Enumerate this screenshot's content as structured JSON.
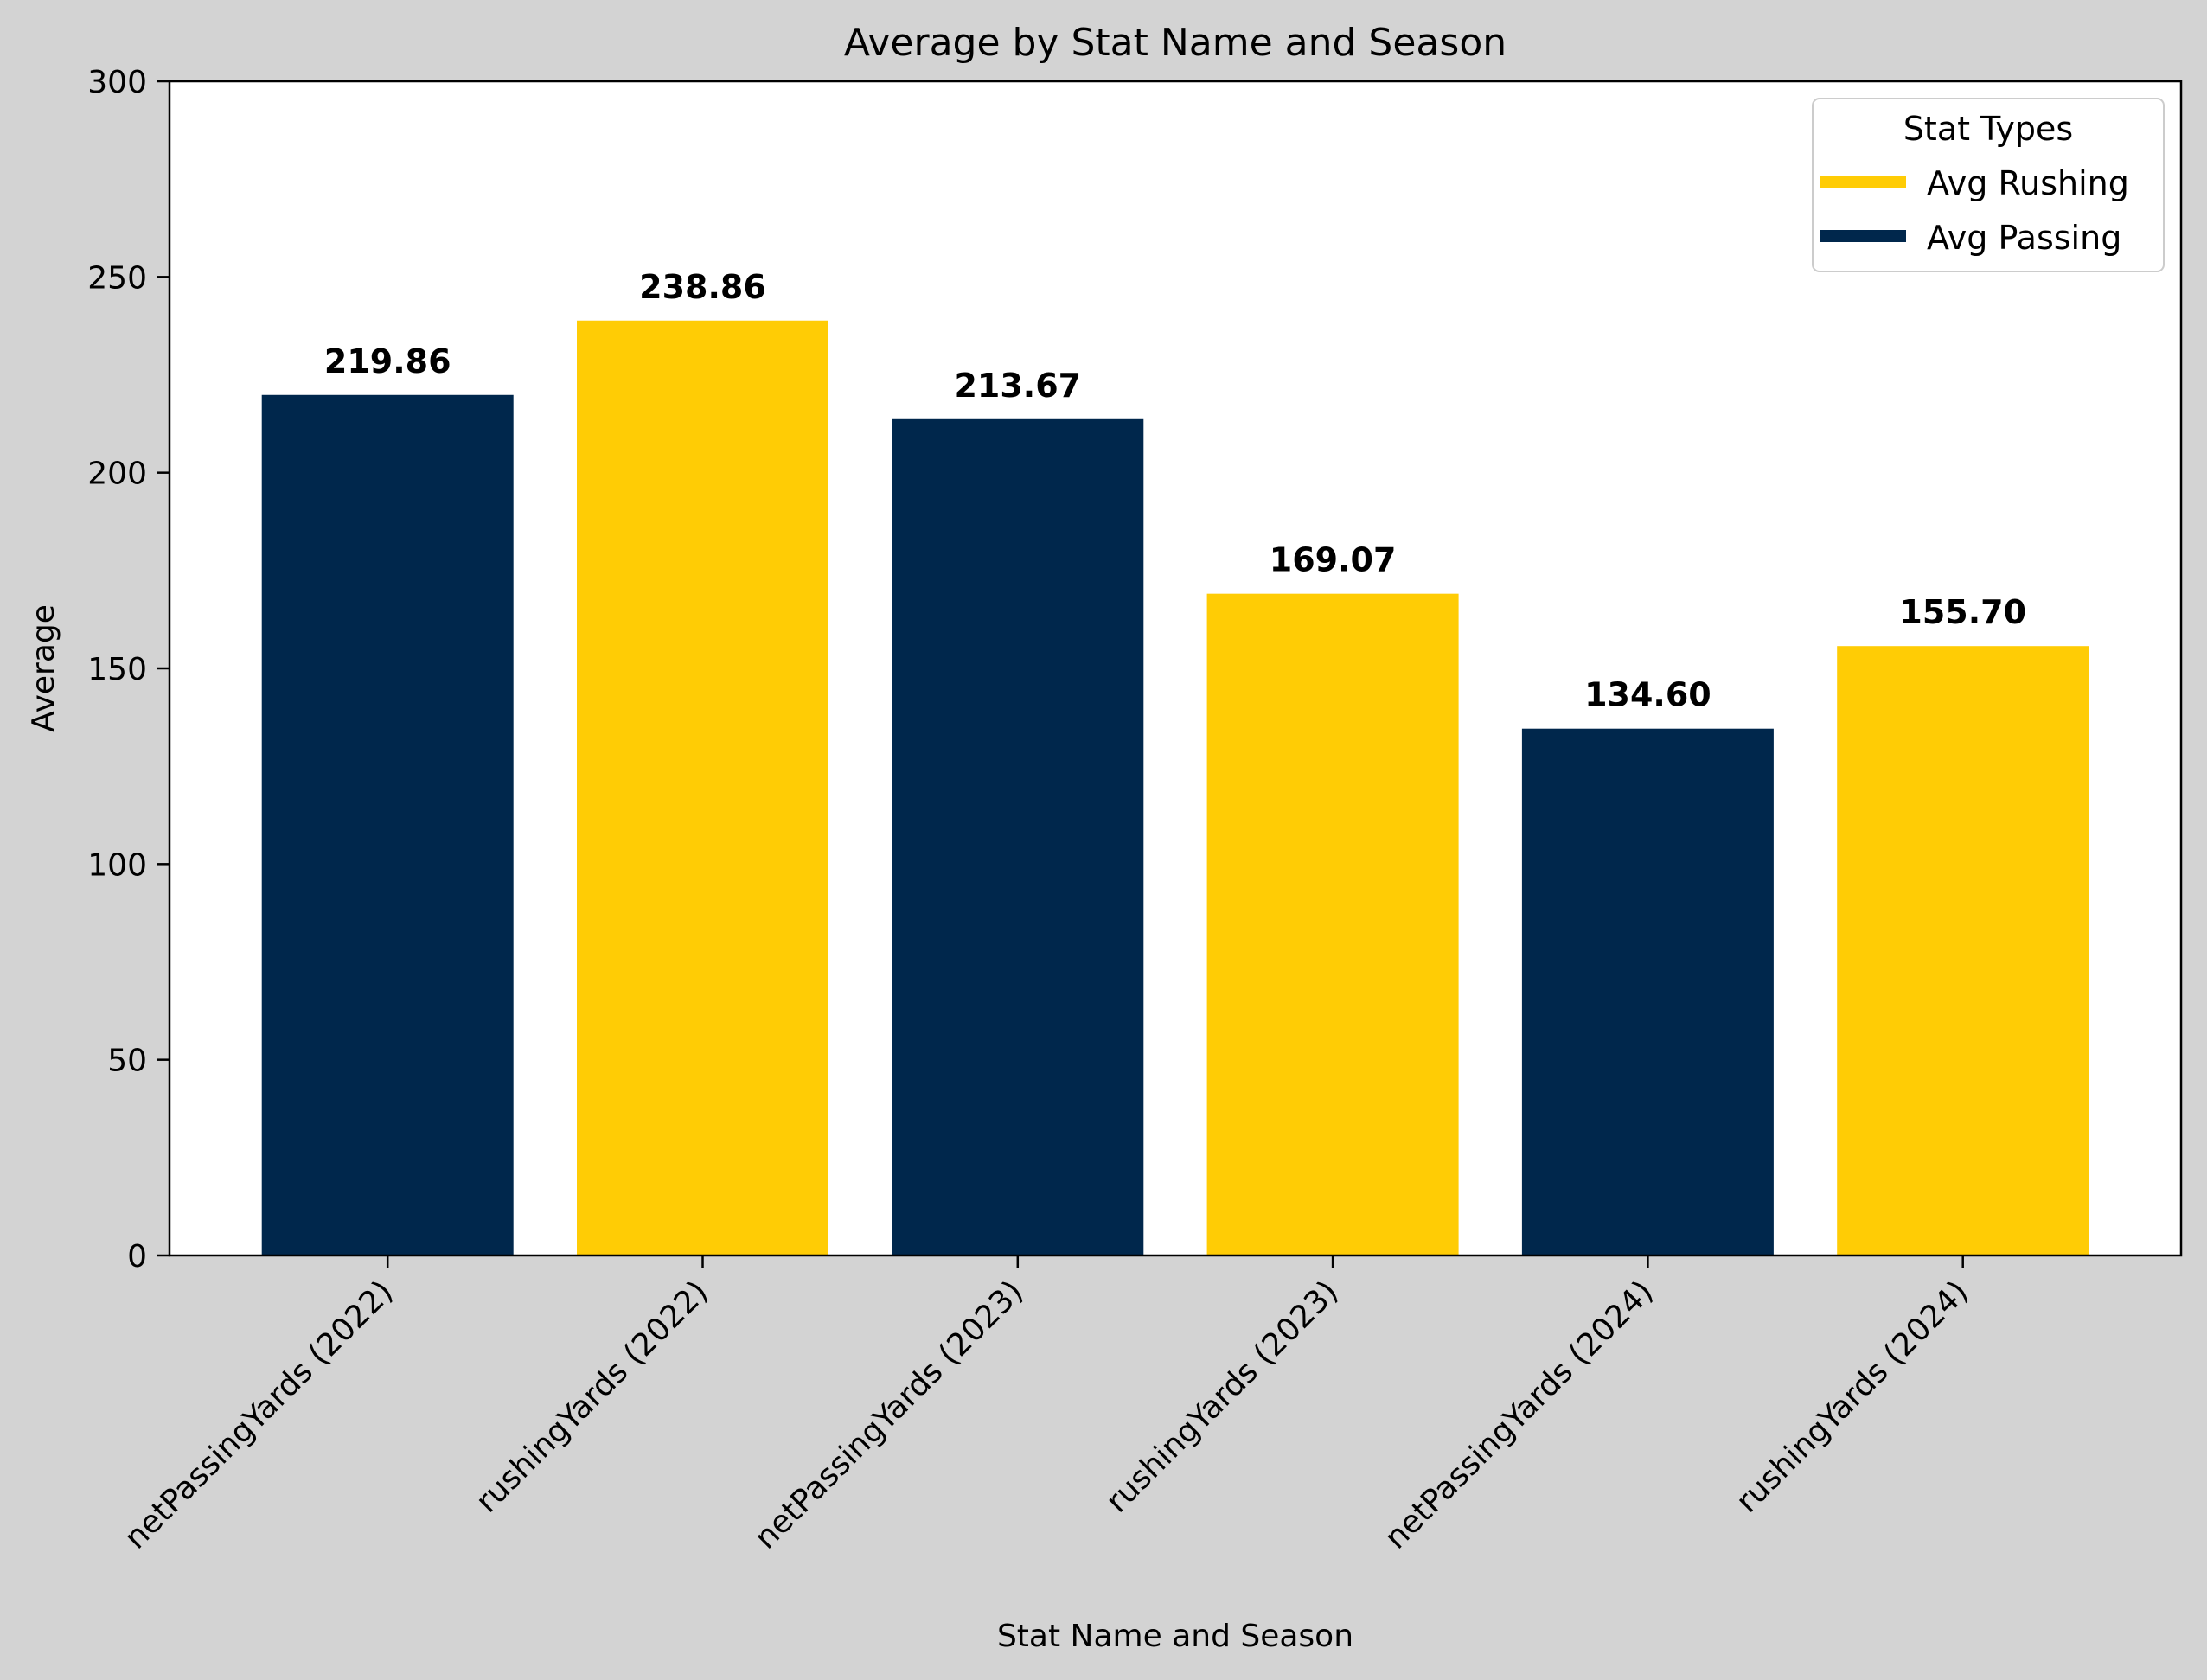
{
  "chart_data": {
    "type": "bar",
    "title": "Average by Stat Name and Season",
    "xlabel": "Stat Name and Season",
    "ylabel": "Average",
    "ylim": [
      0,
      300
    ],
    "yticks": [
      0,
      50,
      100,
      150,
      200,
      250,
      300
    ],
    "categories": [
      "netPassingYards (2022)",
      "rushingYards (2022)",
      "netPassingYards (2023)",
      "rushingYards (2023)",
      "netPassingYards (2024)",
      "rushingYards (2024)"
    ],
    "values": [
      219.86,
      238.86,
      213.67,
      169.07,
      134.6,
      155.7
    ],
    "value_labels": [
      "219.86",
      "238.86",
      "213.67",
      "169.07",
      "134.60",
      "155.70"
    ],
    "bar_series": [
      "passing",
      "rushing",
      "passing",
      "rushing",
      "passing",
      "rushing"
    ],
    "series": [
      {
        "key": "rushing",
        "name": "Avg Rushing",
        "color": "#ffcc05"
      },
      {
        "key": "passing",
        "name": "Avg Passing",
        "color": "#00274c"
      }
    ],
    "legend": {
      "title": "Stat Types",
      "placement": "top-right"
    },
    "grid": false
  }
}
